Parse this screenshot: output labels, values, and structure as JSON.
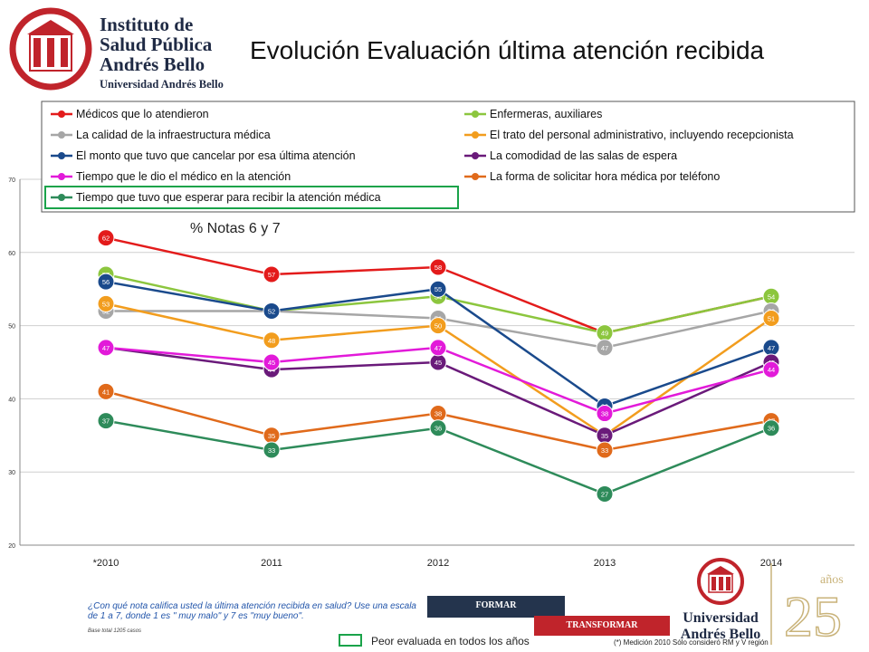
{
  "header": {
    "logo_lines": [
      "Instituto de",
      "Salud Pública",
      "Andrés Bello"
    ],
    "logo_sub": "Universidad Andrés Bello",
    "title": "Evolución Evaluación última atención recibida"
  },
  "chart_data": {
    "type": "line",
    "subtitle": "% Notas 6 y 7",
    "categories": [
      "*2010",
      "2011",
      "2012",
      "2013",
      "2014"
    ],
    "y_ticks": [
      "20",
      "30",
      "40",
      "50",
      "60",
      "70"
    ],
    "ylim": [
      20,
      70
    ],
    "grid": true,
    "legend_position": "top",
    "series": [
      {
        "name": "Médicos que lo atendieron",
        "color": "#e31b1b",
        "values": [
          62,
          57,
          58,
          49,
          54
        ],
        "labels": [
          "62",
          "57",
          "58",
          "49",
          "54"
        ]
      },
      {
        "name": "Enfermeras, auxiliares",
        "color": "#8cc63e",
        "values": [
          57,
          52,
          54,
          49,
          54
        ],
        "labels": [
          "57",
          "52",
          "54",
          "49",
          "54"
        ]
      },
      {
        "name": "La calidad de la infraestructura médica",
        "color": "#a6a6a6",
        "values": [
          52,
          52,
          51,
          47,
          52
        ],
        "labels": [
          "52",
          "52",
          "51",
          "47",
          "52"
        ]
      },
      {
        "name": "El trato del personal administrativo, incluyendo recepcionista",
        "color": "#f29d1e",
        "values": [
          53,
          48,
          50,
          35,
          51
        ],
        "labels": [
          "53",
          "48",
          "50",
          "35",
          "51"
        ]
      },
      {
        "name": "El monto que tuvo que cancelar por esa última atención",
        "color": "#1a4a8c",
        "values": [
          56,
          52,
          55,
          39,
          47
        ],
        "labels": [
          "56",
          "52",
          "55",
          "39",
          "47"
        ]
      },
      {
        "name": "La comodidad de las salas de espera",
        "color": "#6a1a7a",
        "values": [
          47,
          44,
          45,
          35,
          45
        ],
        "labels": [
          "47",
          "44",
          "45",
          "35",
          "45"
        ]
      },
      {
        "name": "Tiempo que le dio el médico en la atención",
        "color": "#e21ad9",
        "values": [
          47,
          45,
          47,
          38,
          44
        ],
        "labels": [
          "47",
          "45",
          "47",
          "38",
          "44"
        ]
      },
      {
        "name": "La forma de solicitar hora médica por teléfono",
        "color": "#e06a1b",
        "values": [
          41,
          35,
          38,
          33,
          37
        ],
        "labels": [
          "41",
          "35",
          "38",
          "33",
          "37"
        ]
      },
      {
        "name": "Tiempo que tuvo que esperar para recibir la atención médica",
        "color": "#2e8b5a",
        "values": [
          37,
          33,
          36,
          27,
          36
        ],
        "labels": [
          "37",
          "33",
          "36",
          "27",
          "36"
        ],
        "highlighted": true
      }
    ]
  },
  "footer": {
    "question": "¿Con qué nota califica usted la última atención recibida en salud? Use una escala de 1 a 7, donde 1 es \" muy malo\" y 7 es \"muy bueno\".",
    "base": "Base total 1205  casos",
    "banner_top": "FORMAR",
    "banner_bottom": "TRANSFORMAR",
    "highlight_legend": "Peor evaluada en todos los años",
    "footnote": "(*) Medición 2010 Sólo consideró RM y V región",
    "ua_logo_lines": [
      "Universidad",
      "Andrés Bello"
    ],
    "anniversary": "años",
    "anniversary_number": "25"
  },
  "colors": {
    "brand_navy": "#1f2a44",
    "brand_red": "#c0242b",
    "highlight_green": "#1aa34a"
  }
}
